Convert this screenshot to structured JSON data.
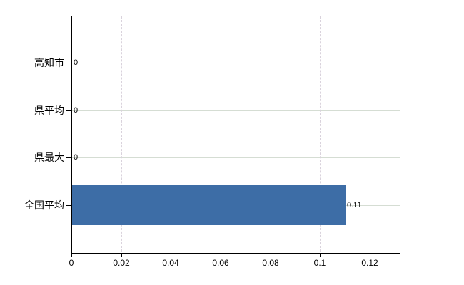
{
  "chart_data": {
    "type": "bar",
    "orientation": "horizontal",
    "title": "",
    "xlabel": "",
    "ylabel": "",
    "categories": [
      "高知市",
      "県平均",
      "県最大",
      "全国平均"
    ],
    "values": [
      0,
      0,
      0,
      0.11
    ],
    "value_labels": [
      "0",
      "0",
      "0",
      "0.11"
    ],
    "x_ticks": [
      0,
      0.02,
      0.04,
      0.06,
      0.08,
      0.1,
      0.12
    ],
    "x_tick_labels": [
      "0",
      "0.02",
      "0.04",
      "0.06",
      "0.08",
      "0.1",
      "0.12"
    ],
    "xlim": [
      0,
      0.132
    ],
    "grid": true,
    "legend": false,
    "colors": {
      "background": "#ffffff",
      "bar": "#3d6da6",
      "axis": "#000000",
      "horizontal_gridline": "#d5ddd3",
      "vertical_gridline": "#d9d2dc",
      "text": "#000000"
    }
  }
}
